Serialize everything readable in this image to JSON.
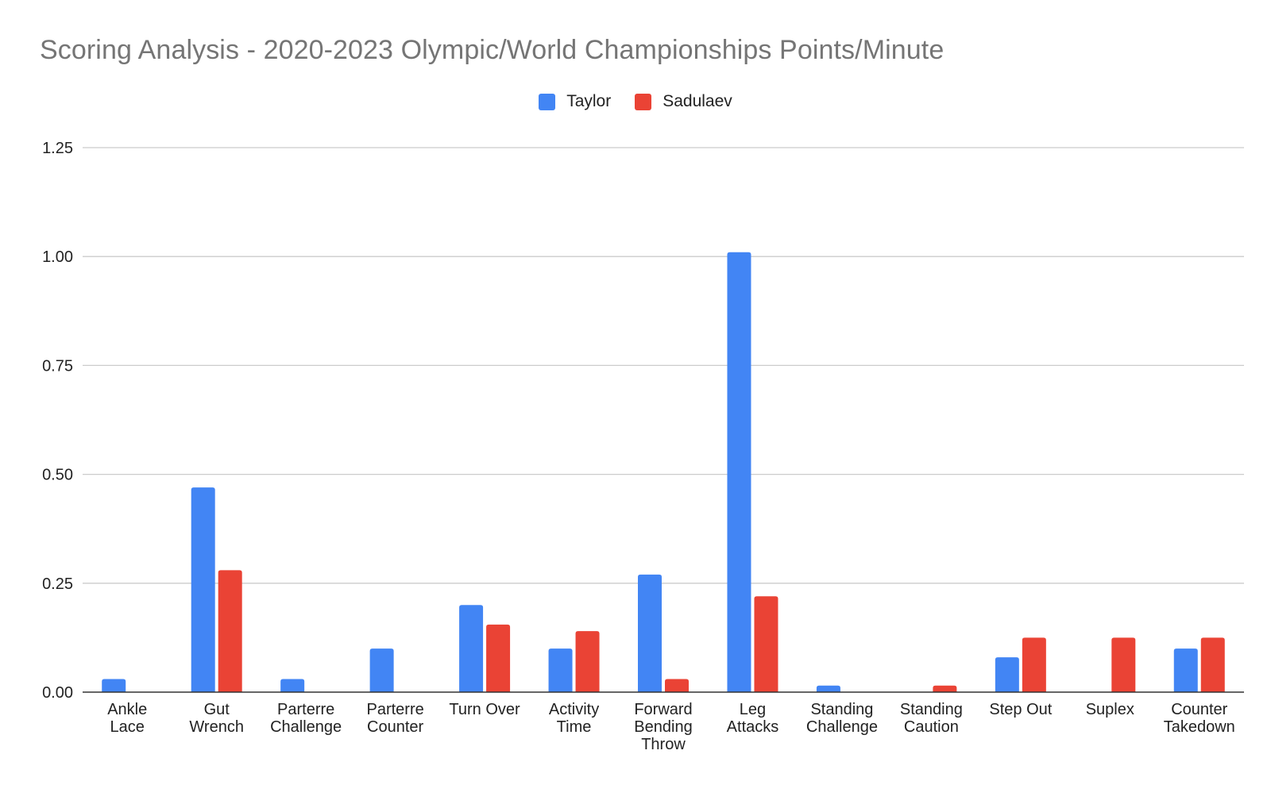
{
  "chart_data": {
    "type": "bar",
    "title": "Scoring Analysis - 2020-2023 Olympic/World Championships Points/Minute",
    "xlabel": "",
    "ylabel": "",
    "ylim": [
      0,
      1.25
    ],
    "yticks": [
      "0.00",
      "0.25",
      "0.50",
      "0.75",
      "1.00",
      "1.25"
    ],
    "grid": true,
    "legend_position": "top-center",
    "categories": [
      [
        "Ankle",
        "Lace"
      ],
      [
        "Gut",
        "Wrench"
      ],
      [
        "Parterre",
        "Challenge"
      ],
      [
        "Parterre",
        "Counter"
      ],
      [
        "Turn Over"
      ],
      [
        "Activity",
        "Time"
      ],
      [
        "Forward",
        "Bending",
        "Throw"
      ],
      [
        "Leg",
        "Attacks"
      ],
      [
        "Standing",
        "Challenge"
      ],
      [
        "Standing",
        "Caution"
      ],
      [
        "Step Out"
      ],
      [
        "Suplex"
      ],
      [
        "Counter",
        "Takedown"
      ]
    ],
    "series": [
      {
        "name": "Taylor",
        "color": "#4285F4",
        "values": [
          0.03,
          0.47,
          0.03,
          0.1,
          0.2,
          0.1,
          0.27,
          1.01,
          0.015,
          0.0,
          0.08,
          0.0,
          0.1
        ]
      },
      {
        "name": "Sadulaev",
        "color": "#EA4335",
        "values": [
          0.0,
          0.28,
          0.0,
          0.0,
          0.155,
          0.14,
          0.03,
          0.22,
          0.0,
          0.015,
          0.125,
          0.125,
          0.125
        ]
      }
    ]
  }
}
